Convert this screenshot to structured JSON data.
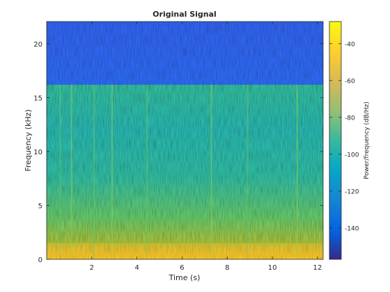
{
  "chart_data": {
    "type": "heatmap",
    "title": "Original Signal",
    "xlabel": "Time (s)",
    "ylabel": "Frequency (kHz)",
    "xlim": [
      0,
      12.25
    ],
    "ylim": [
      0,
      22.05
    ],
    "xticks": [
      2,
      4,
      6,
      8,
      10,
      12
    ],
    "yticks": [
      0,
      5,
      10,
      15,
      20
    ],
    "colorbar": {
      "label": "Power/frequency (dB/Hz)",
      "range": [
        -157,
        -28
      ],
      "ticks": [
        -40,
        -60,
        -80,
        -100,
        -120,
        -140
      ],
      "colormap": "parula"
    },
    "bands": [
      {
        "name": "low-frequency energy",
        "freq_khz": [
          0,
          1.5
        ],
        "level_db": -55
      },
      {
        "name": "lower band",
        "freq_khz": [
          1.5,
          5
        ],
        "level_db": -80
      },
      {
        "name": "mid band",
        "freq_khz": [
          5,
          16.2
        ],
        "level_db": -90
      },
      {
        "name": "above cutoff",
        "freq_khz": [
          16.2,
          22.05
        ],
        "level_db": -125
      }
    ],
    "cutoff_khz": 16.2,
    "transients_s": [
      0.6,
      1.1,
      2.1,
      2.9,
      4.45,
      7.3,
      8.9,
      11.1
    ],
    "grid": false
  }
}
